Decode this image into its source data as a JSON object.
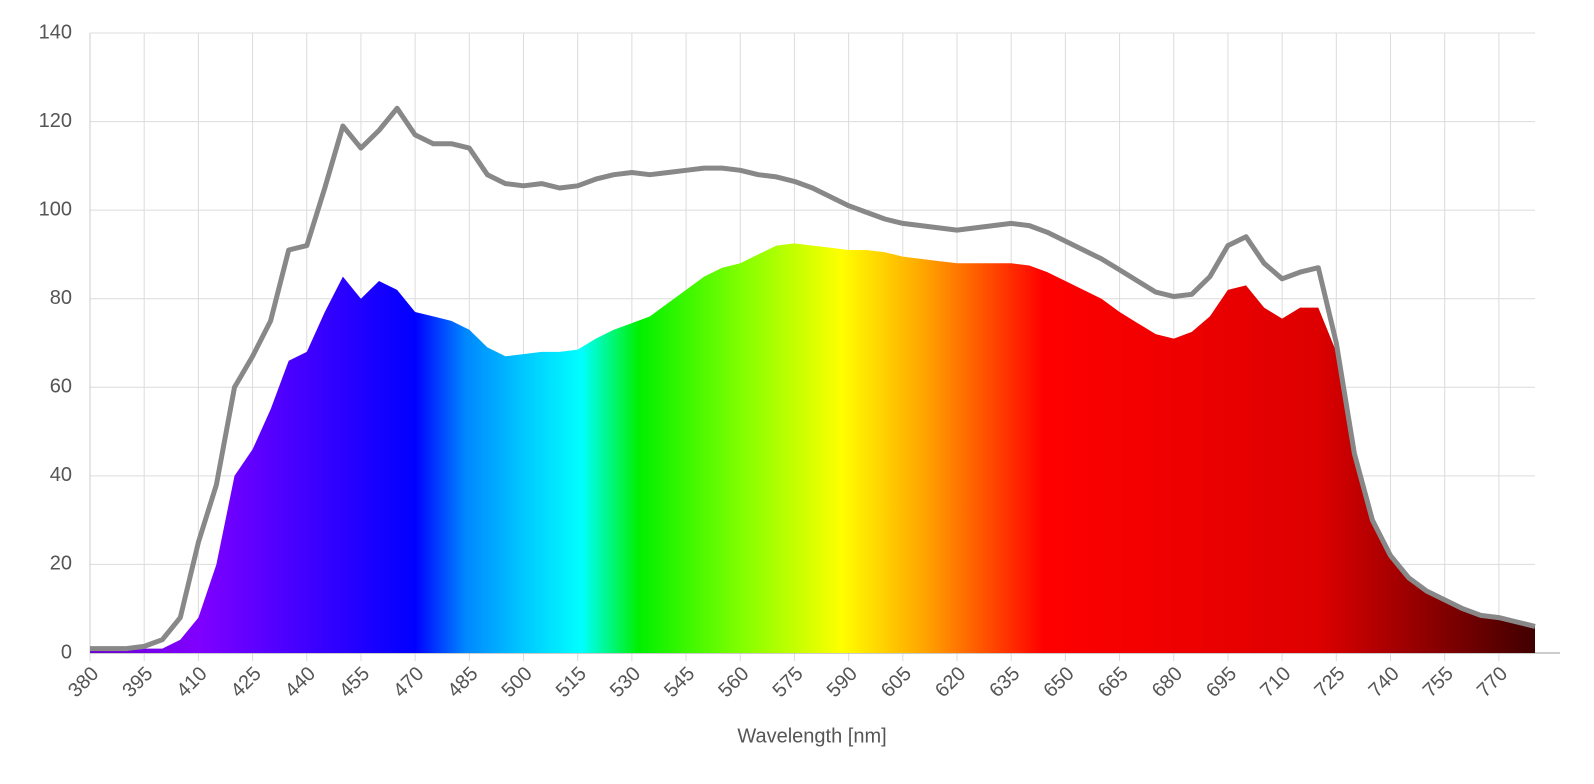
{
  "chart_data": {
    "type": "area",
    "xlabel": "Wavelength [nm]",
    "x": [
      380,
      385,
      390,
      395,
      400,
      405,
      410,
      415,
      420,
      425,
      430,
      435,
      440,
      445,
      450,
      455,
      460,
      465,
      470,
      475,
      480,
      485,
      490,
      495,
      500,
      505,
      510,
      515,
      520,
      525,
      530,
      535,
      540,
      545,
      550,
      555,
      560,
      565,
      570,
      575,
      580,
      585,
      590,
      595,
      600,
      605,
      610,
      615,
      620,
      625,
      630,
      635,
      640,
      645,
      650,
      655,
      660,
      665,
      670,
      675,
      680,
      685,
      690,
      695,
      700,
      705,
      710,
      715,
      720,
      725,
      730,
      735,
      740,
      745,
      750,
      755,
      760,
      765,
      770,
      775,
      780
    ],
    "series": [
      {
        "color": "#888888",
        "values": [
          1,
          1,
          1,
          1.5,
          3,
          8,
          25,
          38,
          60,
          67,
          75,
          91,
          92,
          105,
          119,
          114,
          118,
          123,
          117,
          115,
          115,
          114,
          108,
          106,
          105.5,
          106,
          105,
          105.5,
          107,
          108,
          108.5,
          108,
          108.5,
          109,
          109.5,
          109.5,
          109,
          108,
          107.5,
          106.5,
          105,
          103,
          101,
          99.5,
          98,
          97,
          96.5,
          96,
          95.5,
          96,
          96.5,
          97,
          96.5,
          95,
          93,
          91,
          89,
          86.5,
          84,
          81.5,
          80.5,
          81,
          85,
          92,
          94,
          88,
          84.5,
          86,
          87,
          70,
          45,
          30,
          22,
          17,
          14,
          12,
          10,
          8.5,
          8,
          7,
          6
        ]
      },
      {
        "values": [
          1,
          1,
          1,
          1,
          1,
          3,
          8,
          20,
          40,
          46,
          55,
          66,
          68,
          77,
          85,
          80,
          84,
          82,
          77,
          76,
          75,
          73,
          69,
          67,
          67.5,
          68,
          68,
          68.5,
          71,
          73,
          74.5,
          76,
          79,
          82,
          85,
          87,
          88,
          90,
          92,
          92.5,
          92,
          91.5,
          91,
          91,
          90.5,
          89.5,
          89,
          88.5,
          88,
          88,
          88,
          88,
          87.5,
          86,
          84,
          82,
          80,
          77,
          74.5,
          72,
          71,
          72.5,
          76,
          82,
          83,
          78,
          75.5,
          78,
          78,
          68,
          45,
          30,
          22,
          17,
          14,
          12,
          10,
          8.5,
          8,
          7,
          6
        ]
      }
    ],
    "xlim": [
      380,
      780
    ],
    "xticks": [
      380,
      395,
      410,
      425,
      440,
      455,
      470,
      485,
      500,
      515,
      530,
      545,
      560,
      575,
      590,
      605,
      620,
      635,
      650,
      665,
      680,
      695,
      710,
      725,
      740,
      755,
      770
    ],
    "ylim": [
      0,
      140
    ],
    "yticks": [
      0,
      20,
      40,
      60,
      80,
      100,
      120,
      140
    ],
    "grid": true
  }
}
